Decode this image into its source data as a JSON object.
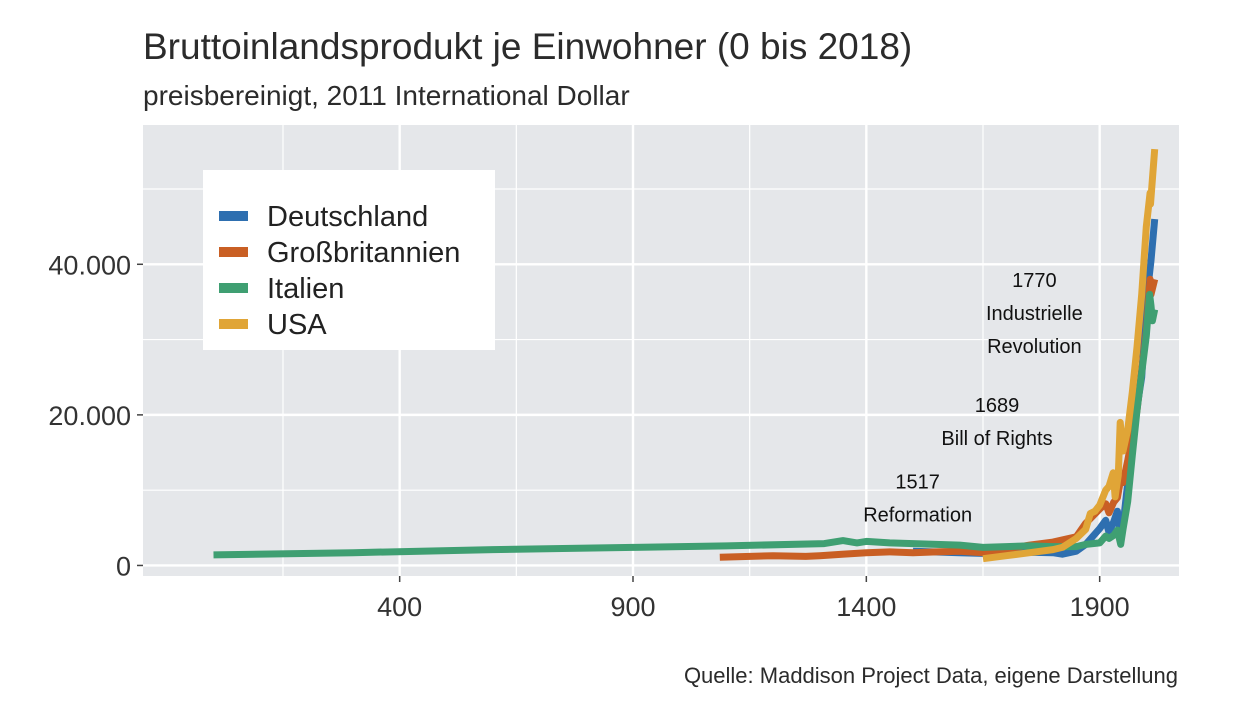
{
  "chart_data": {
    "type": "line",
    "title": "Bruttoinlandsprodukt je Einwohner (0 bis 2018)",
    "subtitle": "preisbereinigt, 2011 International Dollar",
    "caption": "Quelle: Maddison Project Data, eigene Darstellung",
    "xlabel": "",
    "ylabel": "",
    "xlim": [
      -150,
      2070
    ],
    "ylim": [
      -1400,
      58500
    ],
    "x_ticks": [
      400,
      900,
      1400,
      1900
    ],
    "x_tick_labels": [
      "400",
      "900",
      "1400",
      "1900"
    ],
    "y_ticks": [
      0,
      20000,
      40000
    ],
    "y_tick_labels": [
      "0",
      "20.000",
      "40.000"
    ],
    "grid": true,
    "legend_position": "top-left",
    "series": [
      {
        "name": "Deutschland",
        "color": "#2e6fb0",
        "points": [
          [
            1500,
            1900
          ],
          [
            1600,
            1700
          ],
          [
            1650,
            1600
          ],
          [
            1700,
            1700
          ],
          [
            1750,
            1750
          ],
          [
            1800,
            1700
          ],
          [
            1820,
            1500
          ],
          [
            1850,
            1900
          ],
          [
            1870,
            2800
          ],
          [
            1900,
            4900
          ],
          [
            1913,
            6000
          ],
          [
            1920,
            4400
          ],
          [
            1930,
            5800
          ],
          [
            1938,
            7200
          ],
          [
            1945,
            3500
          ],
          [
            1950,
            5300
          ],
          [
            1960,
            10900
          ],
          [
            1970,
            15500
          ],
          [
            1980,
            21000
          ],
          [
            1990,
            25000
          ],
          [
            2000,
            35000
          ],
          [
            2010,
            40500
          ],
          [
            2018,
            46000
          ]
        ]
      },
      {
        "name": "Großbritannien",
        "color": "#c95f24",
        "points": [
          [
            1086,
            1100
          ],
          [
            1200,
            1300
          ],
          [
            1270,
            1200
          ],
          [
            1300,
            1300
          ],
          [
            1348,
            1500
          ],
          [
            1400,
            1700
          ],
          [
            1450,
            1800
          ],
          [
            1500,
            1700
          ],
          [
            1550,
            1800
          ],
          [
            1600,
            1900
          ],
          [
            1650,
            1700
          ],
          [
            1700,
            2200
          ],
          [
            1750,
            2700
          ],
          [
            1800,
            3100
          ],
          [
            1850,
            3800
          ],
          [
            1870,
            5600
          ],
          [
            1900,
            7500
          ],
          [
            1913,
            8200
          ],
          [
            1920,
            7000
          ],
          [
            1930,
            8400
          ],
          [
            1938,
            9000
          ],
          [
            1945,
            11500
          ],
          [
            1950,
            11000
          ],
          [
            1960,
            13900
          ],
          [
            1970,
            17200
          ],
          [
            1980,
            20600
          ],
          [
            1990,
            26000
          ],
          [
            2000,
            31000
          ],
          [
            2008,
            38000
          ],
          [
            2010,
            36000
          ],
          [
            2018,
            38000
          ]
        ]
      },
      {
        "name": "Italien",
        "color": "#3f9f72",
        "points": [
          [
            1,
            1400
          ],
          [
            300,
            1700
          ],
          [
            600,
            2100
          ],
          [
            900,
            2400
          ],
          [
            1100,
            2600
          ],
          [
            1310,
            2900
          ],
          [
            1350,
            3300
          ],
          [
            1380,
            3000
          ],
          [
            1400,
            3200
          ],
          [
            1450,
            3000
          ],
          [
            1500,
            2900
          ],
          [
            1550,
            2800
          ],
          [
            1600,
            2700
          ],
          [
            1650,
            2400
          ],
          [
            1700,
            2500
          ],
          [
            1750,
            2600
          ],
          [
            1800,
            2500
          ],
          [
            1850,
            2500
          ],
          [
            1870,
            2800
          ],
          [
            1900,
            3000
          ],
          [
            1913,
            3900
          ],
          [
            1920,
            3600
          ],
          [
            1930,
            4000
          ],
          [
            1938,
            4700
          ],
          [
            1945,
            2800
          ],
          [
            1950,
            4800
          ],
          [
            1960,
            8500
          ],
          [
            1970,
            14600
          ],
          [
            1980,
            20600
          ],
          [
            1990,
            25600
          ],
          [
            2000,
            30500
          ],
          [
            2007,
            36000
          ],
          [
            2010,
            34500
          ],
          [
            2013,
            32500
          ],
          [
            2018,
            34000
          ]
        ]
      },
      {
        "name": "USA",
        "color": "#e0a537",
        "points": [
          [
            1650,
            900
          ],
          [
            1700,
            1300
          ],
          [
            1750,
            1700
          ],
          [
            1800,
            2100
          ],
          [
            1820,
            2400
          ],
          [
            1850,
            3600
          ],
          [
            1870,
            4800
          ],
          [
            1880,
            6900
          ],
          [
            1890,
            7200
          ],
          [
            1900,
            8000
          ],
          [
            1913,
            10000
          ],
          [
            1920,
            10500
          ],
          [
            1929,
            12300
          ],
          [
            1933,
            9100
          ],
          [
            1940,
            12000
          ],
          [
            1944,
            19000
          ],
          [
            1950,
            15200
          ],
          [
            1960,
            18000
          ],
          [
            1970,
            23000
          ],
          [
            1980,
            29000
          ],
          [
            1990,
            36000
          ],
          [
            2000,
            45000
          ],
          [
            2008,
            49500
          ],
          [
            2009,
            48000
          ],
          [
            2018,
            55300
          ]
        ]
      }
    ],
    "annotations": [
      {
        "x": 1760,
        "y": 37000,
        "lines": [
          "1770",
          "Industrielle",
          "Revolution"
        ]
      },
      {
        "x": 1680,
        "y": 20400,
        "lines": [
          "1689",
          "Bill of Rights"
        ]
      },
      {
        "x": 1510,
        "y": 10200,
        "lines": [
          "1517",
          "Reformation"
        ]
      }
    ]
  },
  "colors": {
    "panel_background": "#e5e7ea",
    "grid": "#ffffff"
  }
}
